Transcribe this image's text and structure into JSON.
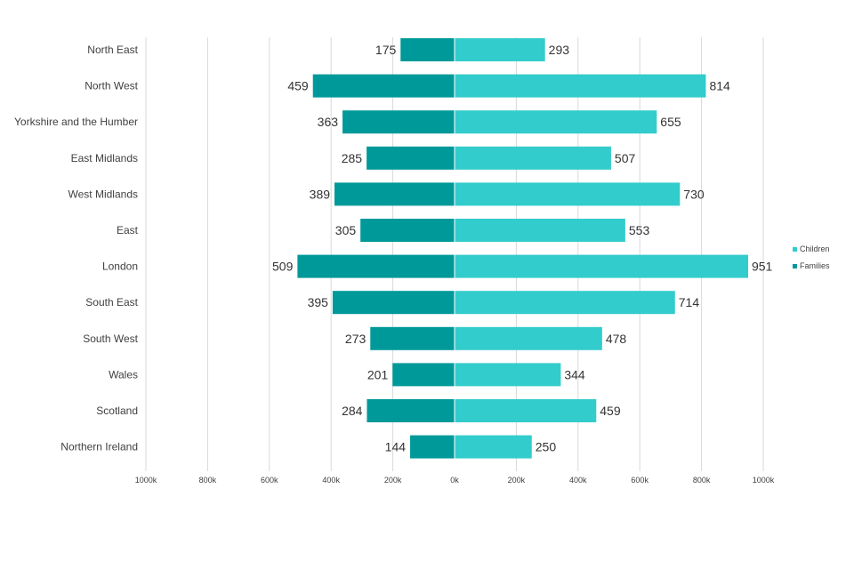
{
  "chart_data": {
    "type": "bar",
    "orientation": "horizontal",
    "layout": "butterfly",
    "categories": [
      "North East",
      "North West",
      "Yorkshire and the Humber",
      "East Midlands",
      "West Midlands",
      "East",
      "London",
      "South East",
      "South West",
      "Wales",
      "Scotland",
      "Northern Ireland"
    ],
    "series": [
      {
        "name": "Families",
        "side": "left",
        "color": "#009999",
        "values": [
          175,
          459,
          363,
          285,
          389,
          305,
          509,
          395,
          273,
          201,
          284,
          144
        ],
        "data_labels": [
          "175",
          "459",
          "363",
          "285",
          "389",
          "305",
          "509",
          "395",
          "273",
          "201",
          "284",
          "144"
        ]
      },
      {
        "name": "Children",
        "side": "right",
        "color": "#33CCCC",
        "values": [
          293,
          814,
          655,
          507,
          730,
          553,
          951,
          714,
          478,
          344,
          459,
          250
        ],
        "data_labels": [
          "293",
          "814",
          "655",
          "507",
          "730",
          "553",
          "951",
          "714",
          "478",
          "344",
          "459",
          "250"
        ]
      }
    ],
    "x_ticks": [
      -1000,
      -800,
      -600,
      -400,
      -200,
      0,
      200,
      400,
      600,
      800,
      1000
    ],
    "x_tick_labels": [
      "1000k",
      "800k",
      "600k",
      "400k",
      "200k",
      "0k",
      "200k",
      "400k",
      "600k",
      "800k",
      "1000k"
    ],
    "xlim": [
      -1000,
      1000
    ],
    "grid": "vertical",
    "legend": {
      "position": "right",
      "entries": [
        "Children",
        "Families"
      ]
    }
  }
}
